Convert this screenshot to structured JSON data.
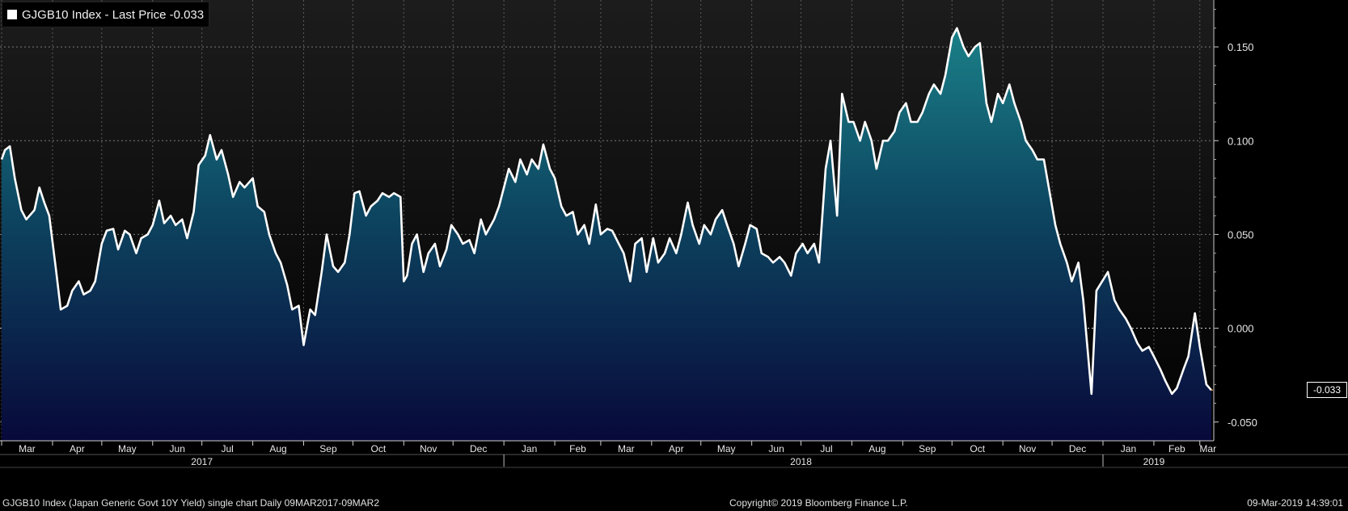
{
  "legend": {
    "label": "GJGB10 Index - Last Price -0.033",
    "swatch_color": "#ffffff"
  },
  "footer": {
    "description": "GJGB10 Index (Japan Generic Govt 10Y Yield) single chart  Daily 09MAR2017-09MAR2",
    "copyright": "Copyright© 2019 Bloomberg Finance L.P.",
    "timestamp": "09-Mar-2019 14:39:01"
  },
  "last_value_label": "-0.033",
  "colors": {
    "line": "#ffffff",
    "fill_top": "#1a7f86",
    "fill_bottom": "#0a0a3c",
    "background_top": "#1b1b1b",
    "background_bottom": "#000000",
    "grid": "#8a8a8a",
    "last_marker": "#e08a2a"
  },
  "chart_data": {
    "type": "area",
    "ylim": [
      -0.06,
      0.175
    ],
    "y_ticks": [
      -0.05,
      0.0,
      0.05,
      0.1,
      0.15
    ],
    "y_tick_labels": [
      "-0.050",
      "0.000",
      "0.050",
      "0.100",
      "0.150"
    ],
    "x_ticks": [
      {
        "label": "Mar",
        "date": "2017-03-01"
      },
      {
        "label": "Apr",
        "date": "2017-04-01"
      },
      {
        "label": "May",
        "date": "2017-05-01"
      },
      {
        "label": "Jun",
        "date": "2017-06-01"
      },
      {
        "label": "Jul",
        "date": "2017-07-01"
      },
      {
        "label": "Aug",
        "date": "2017-08-01"
      },
      {
        "label": "Sep",
        "date": "2017-09-01"
      },
      {
        "label": "Oct",
        "date": "2017-10-01"
      },
      {
        "label": "Nov",
        "date": "2017-11-01"
      },
      {
        "label": "Dec",
        "date": "2017-12-01"
      },
      {
        "label": "Jan",
        "date": "2018-01-01"
      },
      {
        "label": "Feb",
        "date": "2018-02-01"
      },
      {
        "label": "Mar",
        "date": "2018-03-01"
      },
      {
        "label": "Apr",
        "date": "2018-04-01"
      },
      {
        "label": "May",
        "date": "2018-05-01"
      },
      {
        "label": "Jun",
        "date": "2018-06-01"
      },
      {
        "label": "Jul",
        "date": "2018-07-01"
      },
      {
        "label": "Aug",
        "date": "2018-08-01"
      },
      {
        "label": "Sep",
        "date": "2018-09-01"
      },
      {
        "label": "Oct",
        "date": "2018-10-01"
      },
      {
        "label": "Nov",
        "date": "2018-11-01"
      },
      {
        "label": "Dec",
        "date": "2018-12-01"
      },
      {
        "label": "Jan",
        "date": "2019-01-01"
      },
      {
        "label": "Feb",
        "date": "2019-02-01"
      },
      {
        "label": "Mar",
        "date": "2019-03-01"
      }
    ],
    "year_labels": [
      {
        "label": "2017",
        "date": "2017-07-01"
      },
      {
        "label": "2018",
        "date": "2018-07-01"
      },
      {
        "label": "2019",
        "date": "2019-02-01"
      }
    ],
    "year_separators": [
      "2018-01-01",
      "2019-01-01"
    ],
    "x_range": [
      "2017-02-28",
      "2019-03-09"
    ],
    "points": [
      [
        "2017-03-01",
        0.09
      ],
      [
        "2017-03-03",
        0.095
      ],
      [
        "2017-03-06",
        0.097
      ],
      [
        "2017-03-09",
        0.08
      ],
      [
        "2017-03-13",
        0.063
      ],
      [
        "2017-03-16",
        0.058
      ],
      [
        "2017-03-21",
        0.063
      ],
      [
        "2017-03-24",
        0.075
      ],
      [
        "2017-03-27",
        0.067
      ],
      [
        "2017-03-30",
        0.06
      ],
      [
        "2017-04-03",
        0.032
      ],
      [
        "2017-04-06",
        0.01
      ],
      [
        "2017-04-10",
        0.012
      ],
      [
        "2017-04-13",
        0.02
      ],
      [
        "2017-04-17",
        0.025
      ],
      [
        "2017-04-20",
        0.018
      ],
      [
        "2017-04-24",
        0.02
      ],
      [
        "2017-04-27",
        0.025
      ],
      [
        "2017-05-01",
        0.045
      ],
      [
        "2017-05-04",
        0.052
      ],
      [
        "2017-05-08",
        0.053
      ],
      [
        "2017-05-11",
        0.042
      ],
      [
        "2017-05-15",
        0.052
      ],
      [
        "2017-05-18",
        0.05
      ],
      [
        "2017-05-22",
        0.04
      ],
      [
        "2017-05-25",
        0.048
      ],
      [
        "2017-05-29",
        0.05
      ],
      [
        "2017-06-01",
        0.055
      ],
      [
        "2017-06-05",
        0.068
      ],
      [
        "2017-06-08",
        0.056
      ],
      [
        "2017-06-12",
        0.06
      ],
      [
        "2017-06-15",
        0.055
      ],
      [
        "2017-06-19",
        0.058
      ],
      [
        "2017-06-22",
        0.048
      ],
      [
        "2017-06-26",
        0.062
      ],
      [
        "2017-06-29",
        0.087
      ],
      [
        "2017-07-03",
        0.092
      ],
      [
        "2017-07-06",
        0.103
      ],
      [
        "2017-07-10",
        0.09
      ],
      [
        "2017-07-13",
        0.095
      ],
      [
        "2017-07-17",
        0.082
      ],
      [
        "2017-07-20",
        0.07
      ],
      [
        "2017-07-24",
        0.078
      ],
      [
        "2017-07-27",
        0.075
      ],
      [
        "2017-08-01",
        0.08
      ],
      [
        "2017-08-04",
        0.065
      ],
      [
        "2017-08-08",
        0.062
      ],
      [
        "2017-08-11",
        0.05
      ],
      [
        "2017-08-15",
        0.04
      ],
      [
        "2017-08-18",
        0.035
      ],
      [
        "2017-08-22",
        0.023
      ],
      [
        "2017-08-25",
        0.01
      ],
      [
        "2017-08-29",
        0.012
      ],
      [
        "2017-09-01",
        -0.009
      ],
      [
        "2017-09-05",
        0.01
      ],
      [
        "2017-09-08",
        0.007
      ],
      [
        "2017-09-12",
        0.03
      ],
      [
        "2017-09-15",
        0.05
      ],
      [
        "2017-09-19",
        0.033
      ],
      [
        "2017-09-22",
        0.03
      ],
      [
        "2017-09-26",
        0.035
      ],
      [
        "2017-09-29",
        0.05
      ],
      [
        "2017-10-02",
        0.072
      ],
      [
        "2017-10-05",
        0.073
      ],
      [
        "2017-10-09",
        0.06
      ],
      [
        "2017-10-12",
        0.065
      ],
      [
        "2017-10-16",
        0.068
      ],
      [
        "2017-10-19",
        0.072
      ],
      [
        "2017-10-23",
        0.07
      ],
      [
        "2017-10-26",
        0.072
      ],
      [
        "2017-10-30",
        0.07
      ],
      [
        "2017-11-01",
        0.025
      ],
      [
        "2017-11-03",
        0.028
      ],
      [
        "2017-11-06",
        0.045
      ],
      [
        "2017-11-09",
        0.05
      ],
      [
        "2017-11-13",
        0.03
      ],
      [
        "2017-11-16",
        0.04
      ],
      [
        "2017-11-20",
        0.045
      ],
      [
        "2017-11-23",
        0.033
      ],
      [
        "2017-11-27",
        0.042
      ],
      [
        "2017-11-30",
        0.055
      ],
      [
        "2017-12-04",
        0.05
      ],
      [
        "2017-12-07",
        0.045
      ],
      [
        "2017-12-11",
        0.047
      ],
      [
        "2017-12-14",
        0.04
      ],
      [
        "2017-12-18",
        0.058
      ],
      [
        "2017-12-21",
        0.05
      ],
      [
        "2017-12-26",
        0.058
      ],
      [
        "2017-12-29",
        0.065
      ],
      [
        "2018-01-04",
        0.085
      ],
      [
        "2018-01-08",
        0.078
      ],
      [
        "2018-01-11",
        0.09
      ],
      [
        "2018-01-15",
        0.082
      ],
      [
        "2018-01-18",
        0.09
      ],
      [
        "2018-01-22",
        0.085
      ],
      [
        "2018-01-25",
        0.098
      ],
      [
        "2018-01-29",
        0.085
      ],
      [
        "2018-02-01",
        0.08
      ],
      [
        "2018-02-05",
        0.065
      ],
      [
        "2018-02-08",
        0.06
      ],
      [
        "2018-02-12",
        0.062
      ],
      [
        "2018-02-15",
        0.05
      ],
      [
        "2018-02-19",
        0.055
      ],
      [
        "2018-02-22",
        0.045
      ],
      [
        "2018-02-26",
        0.066
      ],
      [
        "2018-03-01",
        0.05
      ],
      [
        "2018-03-05",
        0.053
      ],
      [
        "2018-03-08",
        0.052
      ],
      [
        "2018-03-12",
        0.045
      ],
      [
        "2018-03-15",
        0.04
      ],
      [
        "2018-03-19",
        0.025
      ],
      [
        "2018-03-22",
        0.045
      ],
      [
        "2018-03-26",
        0.048
      ],
      [
        "2018-03-29",
        0.03
      ],
      [
        "2018-04-02",
        0.048
      ],
      [
        "2018-04-05",
        0.035
      ],
      [
        "2018-04-09",
        0.04
      ],
      [
        "2018-04-12",
        0.048
      ],
      [
        "2018-04-16",
        0.04
      ],
      [
        "2018-04-19",
        0.05
      ],
      [
        "2018-04-23",
        0.067
      ],
      [
        "2018-04-26",
        0.055
      ],
      [
        "2018-04-30",
        0.045
      ],
      [
        "2018-05-03",
        0.055
      ],
      [
        "2018-05-07",
        0.05
      ],
      [
        "2018-05-10",
        0.058
      ],
      [
        "2018-05-14",
        0.063
      ],
      [
        "2018-05-17",
        0.055
      ],
      [
        "2018-05-21",
        0.045
      ],
      [
        "2018-05-24",
        0.033
      ],
      [
        "2018-05-28",
        0.045
      ],
      [
        "2018-05-31",
        0.055
      ],
      [
        "2018-06-04",
        0.053
      ],
      [
        "2018-06-07",
        0.04
      ],
      [
        "2018-06-11",
        0.038
      ],
      [
        "2018-06-14",
        0.035
      ],
      [
        "2018-06-18",
        0.038
      ],
      [
        "2018-06-21",
        0.035
      ],
      [
        "2018-06-25",
        0.028
      ],
      [
        "2018-06-28",
        0.04
      ],
      [
        "2018-07-02",
        0.045
      ],
      [
        "2018-07-05",
        0.04
      ],
      [
        "2018-07-09",
        0.045
      ],
      [
        "2018-07-12",
        0.035
      ],
      [
        "2018-07-16",
        0.085
      ],
      [
        "2018-07-19",
        0.1
      ],
      [
        "2018-07-23",
        0.06
      ],
      [
        "2018-07-26",
        0.125
      ],
      [
        "2018-07-30",
        0.11
      ],
      [
        "2018-08-02",
        0.11
      ],
      [
        "2018-08-06",
        0.1
      ],
      [
        "2018-08-09",
        0.11
      ],
      [
        "2018-08-13",
        0.1
      ],
      [
        "2018-08-16",
        0.085
      ],
      [
        "2018-08-20",
        0.1
      ],
      [
        "2018-08-23",
        0.1
      ],
      [
        "2018-08-27",
        0.105
      ],
      [
        "2018-08-30",
        0.115
      ],
      [
        "2018-09-03",
        0.12
      ],
      [
        "2018-09-06",
        0.11
      ],
      [
        "2018-09-10",
        0.11
      ],
      [
        "2018-09-13",
        0.115
      ],
      [
        "2018-09-17",
        0.125
      ],
      [
        "2018-09-20",
        0.13
      ],
      [
        "2018-09-24",
        0.125
      ],
      [
        "2018-09-27",
        0.135
      ],
      [
        "2018-10-01",
        0.155
      ],
      [
        "2018-10-04",
        0.16
      ],
      [
        "2018-10-08",
        0.15
      ],
      [
        "2018-10-11",
        0.145
      ],
      [
        "2018-10-15",
        0.15
      ],
      [
        "2018-10-18",
        0.152
      ],
      [
        "2018-10-22",
        0.12
      ],
      [
        "2018-10-25",
        0.11
      ],
      [
        "2018-10-29",
        0.125
      ],
      [
        "2018-11-01",
        0.12
      ],
      [
        "2018-11-05",
        0.13
      ],
      [
        "2018-11-08",
        0.12
      ],
      [
        "2018-11-12",
        0.11
      ],
      [
        "2018-11-15",
        0.1
      ],
      [
        "2018-11-19",
        0.095
      ],
      [
        "2018-11-22",
        0.09
      ],
      [
        "2018-11-26",
        0.09
      ],
      [
        "2018-11-29",
        0.075
      ],
      [
        "2018-12-03",
        0.055
      ],
      [
        "2018-12-06",
        0.045
      ],
      [
        "2018-12-10",
        0.035
      ],
      [
        "2018-12-13",
        0.025
      ],
      [
        "2018-12-17",
        0.035
      ],
      [
        "2018-12-20",
        0.015
      ],
      [
        "2018-12-25",
        -0.035
      ],
      [
        "2018-12-28",
        0.02
      ],
      [
        "2019-01-04",
        0.03
      ],
      [
        "2019-01-08",
        0.015
      ],
      [
        "2019-01-11",
        0.01
      ],
      [
        "2019-01-15",
        0.005
      ],
      [
        "2019-01-18",
        0.0
      ],
      [
        "2019-01-22",
        -0.008
      ],
      [
        "2019-01-25",
        -0.012
      ],
      [
        "2019-01-29",
        -0.01
      ],
      [
        "2019-02-01",
        -0.015
      ],
      [
        "2019-02-05",
        -0.022
      ],
      [
        "2019-02-08",
        -0.028
      ],
      [
        "2019-02-12",
        -0.035
      ],
      [
        "2019-02-15",
        -0.032
      ],
      [
        "2019-02-19",
        -0.022
      ],
      [
        "2019-02-22",
        -0.015
      ],
      [
        "2019-02-26",
        0.008
      ],
      [
        "2019-03-01",
        -0.01
      ],
      [
        "2019-03-05",
        -0.03
      ],
      [
        "2019-03-08",
        -0.033
      ]
    ],
    "last_price": -0.033
  }
}
